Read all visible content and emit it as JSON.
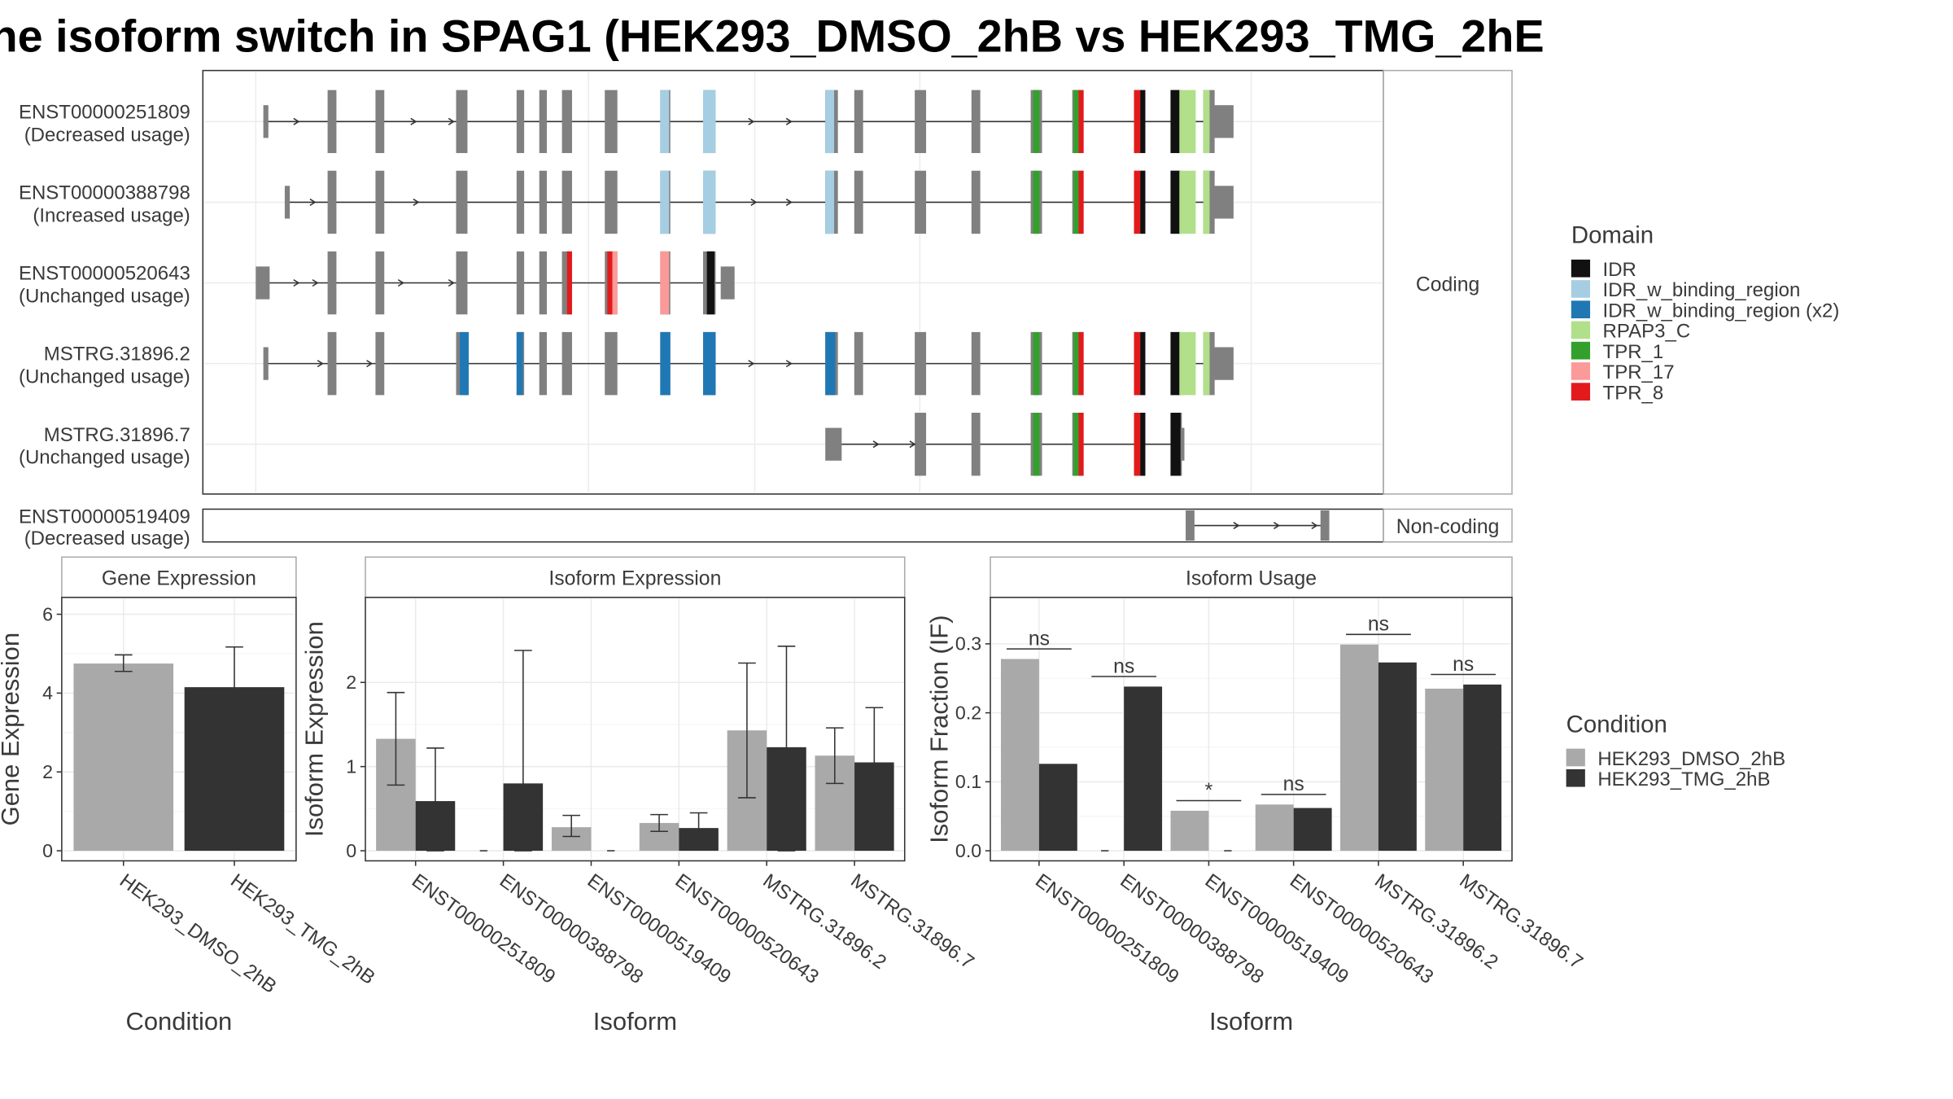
{
  "title": "he isoform switch in SPAG1 (HEK293_DMSO_2hB vs HEK293_TMG_2hE",
  "structure": {
    "coding_label": "Coding",
    "noncoding_label": "Non-coding",
    "transcripts": [
      {
        "id": "ENST00000251809",
        "usage": "(Decreased usage)",
        "type": "coding"
      },
      {
        "id": "ENST00000388798",
        "usage": "(Increased usage)",
        "type": "coding"
      },
      {
        "id": "ENST00000520643",
        "usage": "(Unchanged usage)",
        "type": "coding"
      },
      {
        "id": "MSTRG.31896.2",
        "usage": "(Unchanged usage)",
        "type": "coding"
      },
      {
        "id": "MSTRG.31896.7",
        "usage": "(Unchanged usage)",
        "type": "coding"
      },
      {
        "id": "ENST00000519409",
        "usage": "(Decreased usage)",
        "type": "noncoding"
      }
    ],
    "domain_legend": {
      "title": "Domain",
      "items": [
        {
          "name": "IDR",
          "color": "#111111"
        },
        {
          "name": "IDR_w_binding_region",
          "color": "#a6cee3"
        },
        {
          "name": "IDR_w_binding_region (x2)",
          "color": "#1f78b4"
        },
        {
          "name": "RPAP3_C",
          "color": "#b2df8a"
        },
        {
          "name": "TPR_1",
          "color": "#33a02c"
        },
        {
          "name": "TPR_17",
          "color": "#fb9a99"
        },
        {
          "name": "TPR_8",
          "color": "#e31a1c"
        }
      ]
    },
    "colors": {
      "exon": "#808080",
      "intron": "#333333"
    }
  },
  "condition_legend": {
    "title": "Condition",
    "items": [
      {
        "name": "HEK293_DMSO_2hB",
        "color": "#a9a9a9"
      },
      {
        "name": "HEK293_TMG_2hB",
        "color": "#333333"
      }
    ]
  },
  "chart_data": [
    {
      "type": "bar",
      "title": "Gene Expression",
      "xlabel": "Condition",
      "ylabel": "Gene Expression",
      "categories": [
        "HEK293_DMSO_2hB",
        "HEK293_TMG_2hB"
      ],
      "values": [
        4.75,
        4.15
      ],
      "error_low": [
        4.55,
        3.15
      ],
      "error_high": [
        4.97,
        5.17
      ],
      "yticks": [
        0,
        2,
        4,
        6
      ],
      "ylim": [
        0,
        6.3
      ]
    },
    {
      "type": "bar",
      "title": "Isoform Expression",
      "xlabel": "Isoform",
      "ylabel": "Isoform Expression",
      "categories": [
        "ENST00000251809",
        "ENST00000388798",
        "ENST00000519409",
        "ENST00000520643",
        "MSTRG.31896.2",
        "MSTRG.31896.7"
      ],
      "series": [
        {
          "name": "HEK293_DMSO_2hB",
          "values": [
            1.33,
            0.0,
            0.28,
            0.33,
            1.43,
            1.13
          ],
          "error_low": [
            0.78,
            0.0,
            0.17,
            0.23,
            0.63,
            0.8
          ],
          "error_high": [
            1.88,
            0.0,
            0.42,
            0.43,
            2.23,
            1.46
          ]
        },
        {
          "name": "HEK293_TMG_2hB",
          "values": [
            0.59,
            0.8,
            0.0,
            0.27,
            1.23,
            1.05
          ],
          "error_low": [
            0.0,
            0.0,
            0.0,
            0.12,
            0.0,
            0.4
          ],
          "error_high": [
            1.22,
            2.38,
            0.0,
            0.45,
            2.43,
            1.7
          ]
        }
      ],
      "yticks": [
        0,
        1,
        2
      ],
      "ylim": [
        0,
        2.95
      ]
    },
    {
      "type": "bar",
      "title": "Isoform Usage",
      "xlabel": "Isoform",
      "ylabel": "Isoform Fraction (IF)",
      "categories": [
        "ENST00000251809",
        "ENST00000388798",
        "ENST00000519409",
        "ENST00000520643",
        "MSTRG.31896.2",
        "MSTRG.31896.7"
      ],
      "series": [
        {
          "name": "HEK293_DMSO_2hB",
          "values": [
            0.278,
            0.0,
            0.058,
            0.067,
            0.299,
            0.235
          ]
        },
        {
          "name": "HEK293_TMG_2hB",
          "values": [
            0.126,
            0.238,
            0.0,
            0.062,
            0.273,
            0.241
          ]
        }
      ],
      "significance": [
        "ns",
        "ns",
        "*",
        "ns",
        "ns",
        "ns"
      ],
      "yticks": [
        0.0,
        0.1,
        0.2,
        0.3
      ],
      "ylim": [
        0,
        0.36
      ]
    }
  ]
}
